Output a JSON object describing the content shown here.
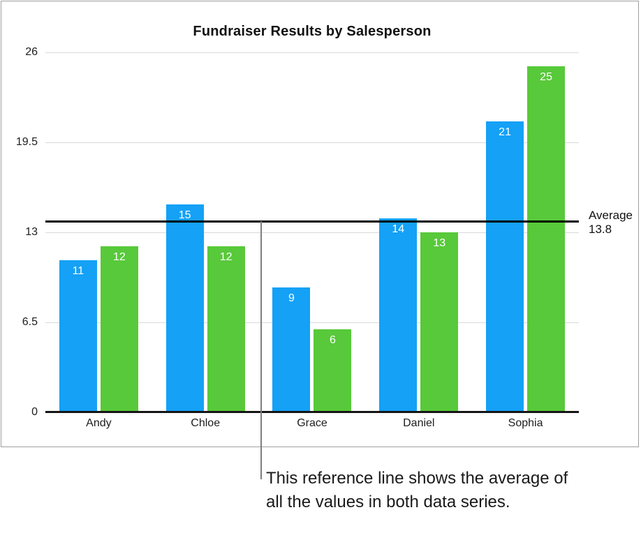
{
  "chart_data": {
    "type": "bar",
    "title": "Fundraiser Results by Salesperson",
    "categories": [
      "Andy",
      "Chloe",
      "Grace",
      "Daniel",
      "Sophia"
    ],
    "series": [
      {
        "color": "#14A1F6",
        "values": [
          11,
          15,
          9,
          14,
          21
        ]
      },
      {
        "color": "#58C93A",
        "values": [
          12,
          12,
          6,
          13,
          25
        ]
      }
    ],
    "ylim": [
      0,
      26
    ],
    "y_ticks": [
      0,
      6.5,
      13,
      19.5,
      26
    ],
    "grid": true,
    "legend": "none",
    "value_labels": "inside-top-white",
    "reference_line": {
      "value": 13.8,
      "label": "Average",
      "value_text": "13.8"
    }
  },
  "callout": {
    "line1": "This reference line shows the average of",
    "line2": "all the values in both data series."
  },
  "colors": {
    "blue_series": "#14A1F6",
    "green_series": "#58C93A",
    "gridline": "#d9d9d9",
    "axis": "#151515",
    "reference_line": "#000000",
    "frame_border": "#9e9e9e",
    "callout_line": "#7f7f7f"
  }
}
